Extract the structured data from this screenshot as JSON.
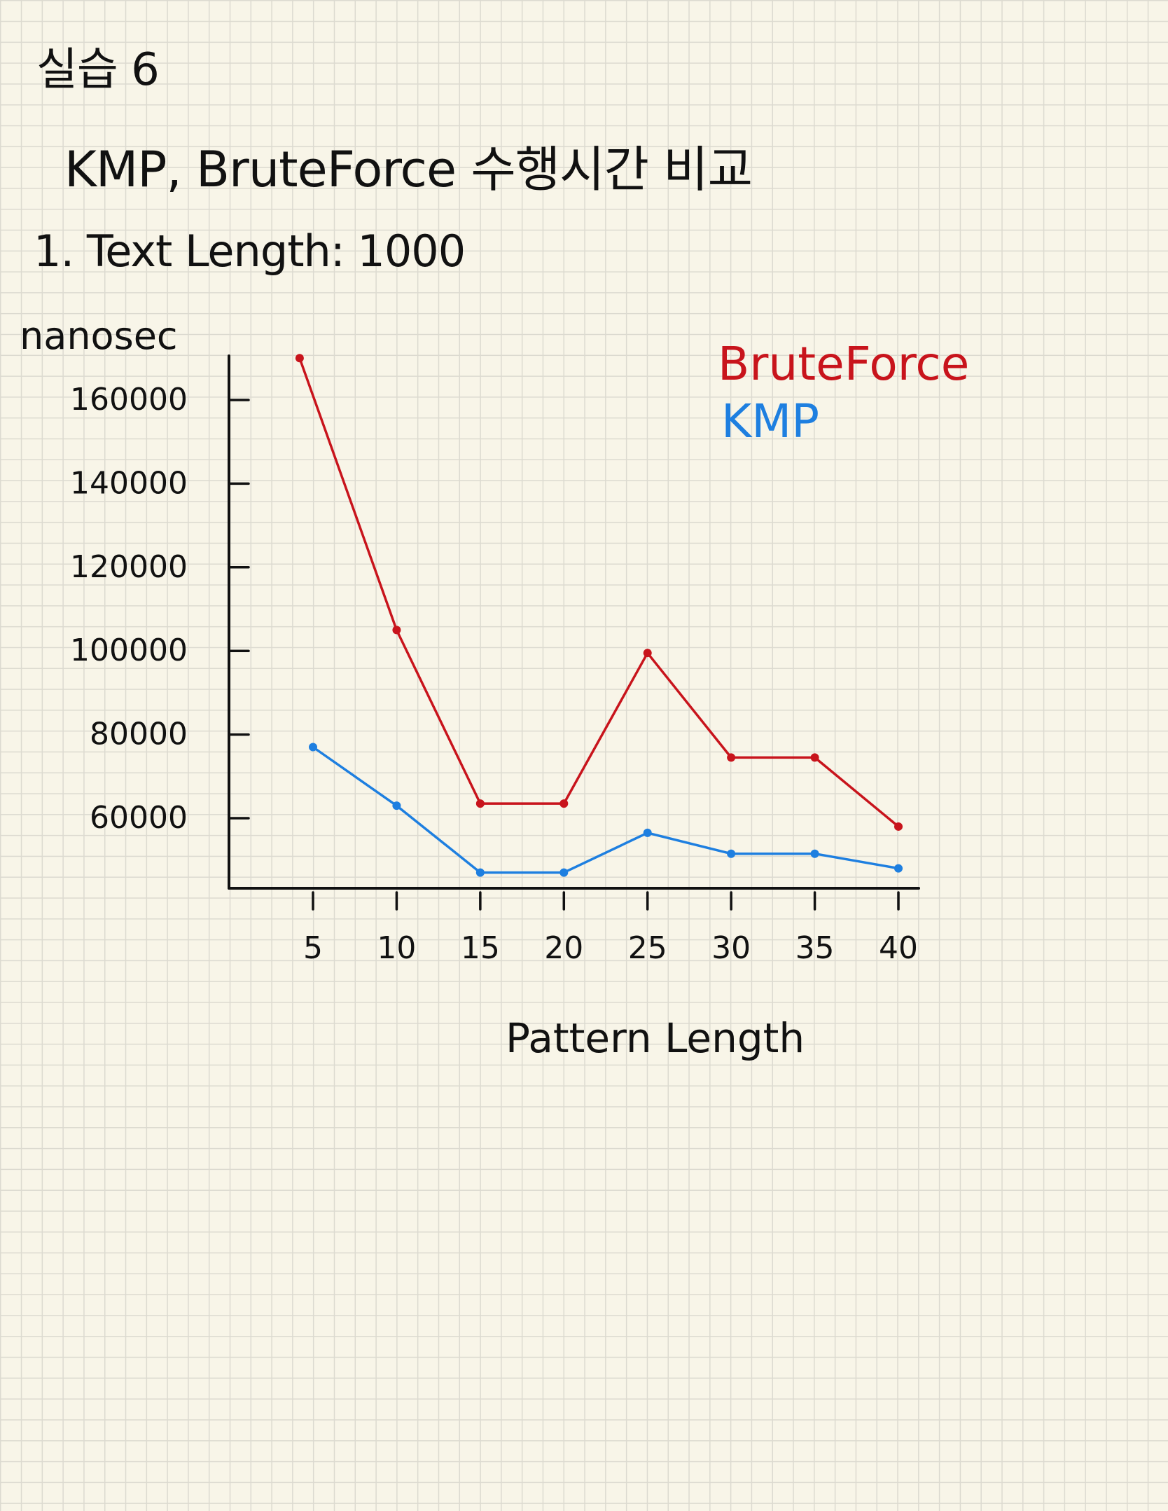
{
  "note": {
    "heading": "실습 6",
    "title": "KMP, BruteForce 수행시간 비교",
    "section": "1. Text Length: 1000"
  },
  "colors": {
    "bruteforce": "#c8141c",
    "kmp": "#1e7fe0",
    "ink": "#111111",
    "paper": "#f8f5e8"
  },
  "chart_data": {
    "type": "line",
    "ylabel": "nanosec",
    "xlabel": "Pattern Length",
    "x": [
      5,
      10,
      15,
      20,
      25,
      30,
      35,
      40
    ],
    "x_tick_labels": [
      "5",
      "10",
      "15",
      "20",
      "25",
      "30",
      "35",
      "40"
    ],
    "y_tick_values": [
      60000,
      80000,
      100000,
      120000,
      140000,
      160000
    ],
    "y_tick_labels": [
      "60000",
      "80000",
      "100000",
      "120000",
      "140000",
      "160000"
    ],
    "ylim": [
      43000,
      170000
    ],
    "grid": false,
    "legend_position": "top-right",
    "series": [
      {
        "name": "BruteForce",
        "color": "#c8141c",
        "x": [
          4.2,
          10,
          15,
          20,
          25,
          30,
          35,
          40
        ],
        "values": [
          170000,
          105000,
          63500,
          63500,
          99500,
          74500,
          74500,
          58000
        ]
      },
      {
        "name": "KMP",
        "color": "#1e7fe0",
        "x": [
          5,
          10,
          15,
          20,
          25,
          30,
          35,
          40
        ],
        "values": [
          77000,
          63000,
          47000,
          47000,
          56500,
          51500,
          51500,
          48000
        ]
      }
    ]
  }
}
